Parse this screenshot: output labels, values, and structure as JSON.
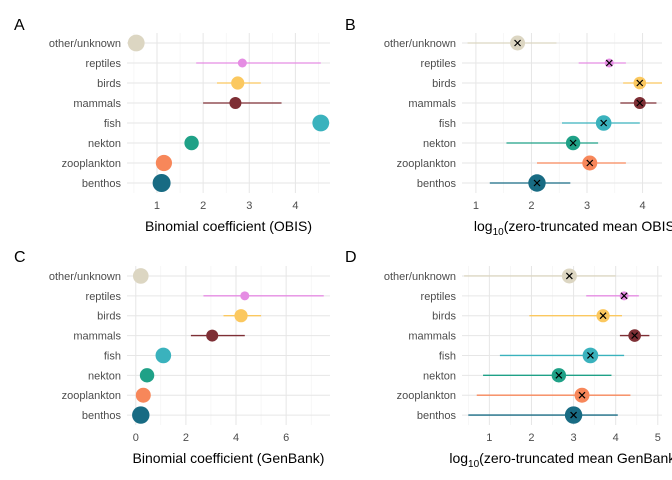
{
  "categories": [
    "other/unknown",
    "reptiles",
    "birds",
    "mammals",
    "fish",
    "nekton",
    "zooplankton",
    "benthos"
  ],
  "colors": {
    "other/unknown": "#dcd6c2",
    "reptiles": "#e58de3",
    "birds": "#fbc85f",
    "mammals": "#7e2f35",
    "fish": "#3ab2bd",
    "nekton": "#1fa187",
    "zooplankton": "#f7875a",
    "benthos": "#186b83"
  },
  "chart_data": [
    {
      "panel": "A",
      "type": "scatter",
      "xlabel": "Binomial coefficient (OBIS)",
      "xlim": [
        0.35,
        4.75
      ],
      "xticks": [
        1,
        2,
        3,
        4
      ],
      "points": [
        {
          "category": "other/unknown",
          "x": 0.55,
          "size": 0.9
        },
        {
          "category": "reptiles",
          "x": 2.85,
          "lo": 1.85,
          "hi": 4.55,
          "size": 0.25
        },
        {
          "category": "birds",
          "x": 2.75,
          "lo": 2.3,
          "hi": 3.25,
          "size": 0.6
        },
        {
          "category": "mammals",
          "x": 2.7,
          "lo": 2.0,
          "hi": 3.7,
          "size": 0.5
        },
        {
          "category": "fish",
          "x": 4.55,
          "size": 0.9
        },
        {
          "category": "nekton",
          "x": 1.75,
          "size": 0.7
        },
        {
          "category": "zooplankton",
          "x": 1.15,
          "size": 0.85
        },
        {
          "category": "benthos",
          "x": 1.1,
          "size": 1.0
        }
      ],
      "cross": false
    },
    {
      "panel": "B",
      "type": "scatter",
      "xlabel_main": "log",
      "xlabel_sub": "10",
      "xlabel_rest": "(zero-truncated mean OBIS records)",
      "xlim": [
        0.75,
        4.35
      ],
      "xticks": [
        1,
        2,
        3,
        4
      ],
      "points": [
        {
          "category": "other/unknown",
          "x": 1.75,
          "lo": 0.85,
          "hi": 2.45,
          "size": 0.75
        },
        {
          "category": "reptiles",
          "x": 3.4,
          "lo": 2.85,
          "hi": 3.7,
          "size": 0.25
        },
        {
          "category": "birds",
          "x": 3.95,
          "lo": 3.65,
          "hi": 4.35,
          "size": 0.55
        },
        {
          "category": "mammals",
          "x": 3.95,
          "lo": 3.6,
          "hi": 4.25,
          "size": 0.5
        },
        {
          "category": "fish",
          "x": 3.3,
          "lo": 2.55,
          "hi": 3.95,
          "size": 0.8
        },
        {
          "category": "nekton",
          "x": 2.75,
          "lo": 1.55,
          "hi": 3.2,
          "size": 0.7
        },
        {
          "category": "zooplankton",
          "x": 3.05,
          "lo": 2.1,
          "hi": 3.7,
          "size": 0.75
        },
        {
          "category": "benthos",
          "x": 2.1,
          "lo": 1.25,
          "hi": 2.7,
          "size": 0.95
        }
      ],
      "cross": true
    },
    {
      "panel": "C",
      "type": "scatter",
      "xlabel": "Binomial coefficient (GenBank)",
      "xlim": [
        -0.35,
        7.75
      ],
      "xticks": [
        0,
        2,
        4,
        6
      ],
      "points": [
        {
          "category": "other/unknown",
          "x": 0.2,
          "size": 0.8
        },
        {
          "category": "reptiles",
          "x": 4.35,
          "lo": 2.7,
          "hi": 7.5,
          "size": 0.25
        },
        {
          "category": "birds",
          "x": 4.2,
          "lo": 3.5,
          "hi": 5.0,
          "size": 0.6
        },
        {
          "category": "mammals",
          "x": 3.05,
          "lo": 2.2,
          "hi": 4.35,
          "size": 0.5
        },
        {
          "category": "fish",
          "x": 1.1,
          "size": 0.8
        },
        {
          "category": "nekton",
          "x": 0.45,
          "size": 0.7
        },
        {
          "category": "zooplankton",
          "x": 0.3,
          "size": 0.75
        },
        {
          "category": "benthos",
          "x": 0.2,
          "size": 0.95
        }
      ],
      "cross": false
    },
    {
      "panel": "D",
      "type": "scatter",
      "xlabel_main": "log",
      "xlabel_sub": "10",
      "xlabel_rest": "(zero-truncated mean GenBank nucleotides)",
      "xlim": [
        0.35,
        5.1
      ],
      "xticks": [
        1,
        2,
        3,
        4,
        5
      ],
      "points": [
        {
          "category": "other/unknown",
          "x": 2.9,
          "lo": 0.4,
          "hi": 4.0,
          "size": 0.75
        },
        {
          "category": "reptiles",
          "x": 4.2,
          "lo": 3.3,
          "hi": 4.55,
          "size": 0.25
        },
        {
          "category": "birds",
          "x": 3.7,
          "lo": 1.95,
          "hi": 4.15,
          "size": 0.6
        },
        {
          "category": "mammals",
          "x": 4.45,
          "lo": 4.1,
          "hi": 4.8,
          "size": 0.55
        },
        {
          "category": "fish",
          "x": 3.4,
          "lo": 1.25,
          "hi": 4.2,
          "size": 0.8
        },
        {
          "category": "nekton",
          "x": 2.65,
          "lo": 0.85,
          "hi": 3.9,
          "size": 0.7
        },
        {
          "category": "zooplankton",
          "x": 3.2,
          "lo": 0.7,
          "hi": 4.35,
          "size": 0.75
        },
        {
          "category": "benthos",
          "x": 3.0,
          "lo": 0.5,
          "hi": 4.05,
          "size": 0.95
        }
      ],
      "cross": true
    }
  ]
}
